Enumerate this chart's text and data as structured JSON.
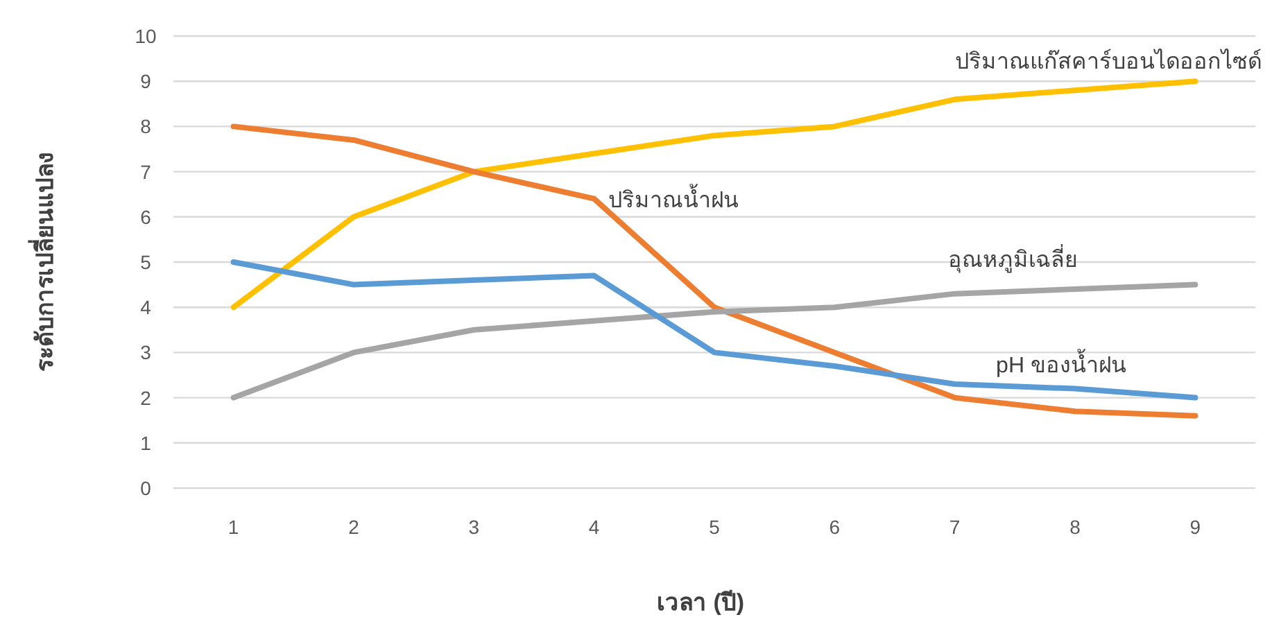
{
  "chart_data": {
    "type": "line",
    "xlabel": "เวลา (ปี)",
    "ylabel": "ระดับการเปลี่ยนแปลง",
    "categories": [
      "1",
      "2",
      "3",
      "4",
      "5",
      "6",
      "7",
      "8",
      "9"
    ],
    "ylim": [
      0,
      10
    ],
    "yticks": [
      0,
      1,
      2,
      3,
      4,
      5,
      6,
      7,
      8,
      9,
      10
    ],
    "grid": "y",
    "legend": false,
    "marker": "none",
    "line_style": "solid",
    "series": [
      {
        "name": "ปริมาณแก๊สคาร์บอนไดออกไซด์",
        "color": "#ffc000",
        "values": [
          4,
          6,
          7,
          7.4,
          7.8,
          8.0,
          8.6,
          8.8,
          9.0
        ]
      },
      {
        "name": "ปริมาณน้ำฝน",
        "color": "#ed7d31",
        "values": [
          8,
          7.7,
          7.0,
          6.4,
          4.0,
          3.0,
          2.0,
          1.7,
          1.6
        ]
      },
      {
        "name": "อุณหภูมิเฉลี่ย",
        "color": "#a5a5a5",
        "values": [
          2,
          3,
          3.5,
          3.7,
          3.9,
          4.0,
          4.3,
          4.4,
          4.5
        ]
      },
      {
        "name": "pH ของน้ำฝน",
        "color": "#5b9bd5",
        "values": [
          5,
          4.5,
          4.6,
          4.7,
          3.0,
          2.7,
          2.3,
          2.2,
          2.0
        ]
      }
    ]
  }
}
